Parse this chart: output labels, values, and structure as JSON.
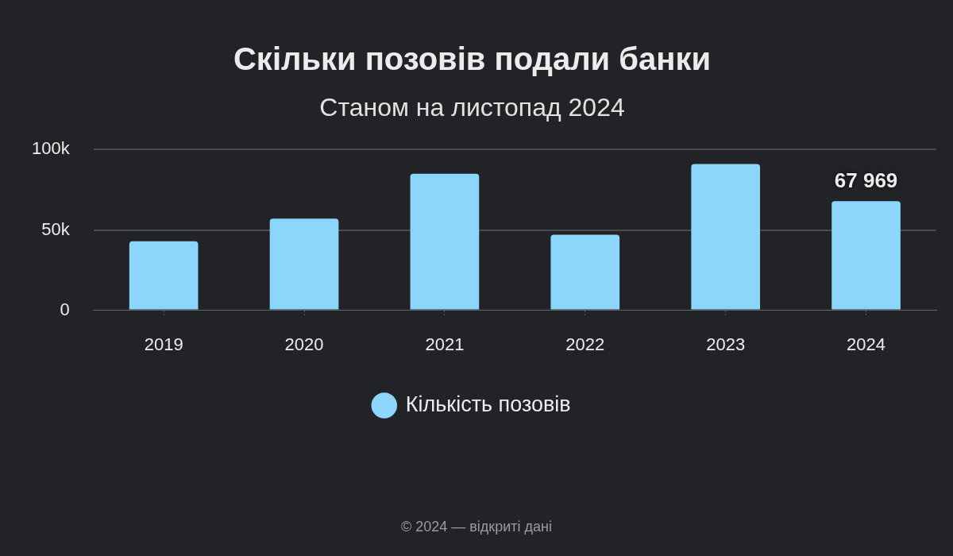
{
  "chart_data": {
    "type": "bar",
    "title": "Скільки позовів подали банки",
    "subtitle": "Станом на листопад 2024",
    "categories": [
      "2019",
      "2020",
      "2021",
      "2022",
      "2023",
      "2024"
    ],
    "series": [
      {
        "name": "Кількість позовів",
        "color": "#8dd6fb",
        "values": [
          43000,
          57000,
          85000,
          47000,
          91000,
          67969
        ],
        "value_labels": [
          null,
          null,
          null,
          null,
          null,
          "67 969"
        ]
      }
    ],
    "ylim": [
      0,
      100000
    ],
    "yticks": [
      0,
      {
        "value": 50000,
        "label": "50k"
      },
      {
        "value": 100000,
        "label": "100k"
      }
    ],
    "grid": "y",
    "legend": "bottom",
    "annotations": [
      "© 2024 — відкриті дані"
    ]
  }
}
